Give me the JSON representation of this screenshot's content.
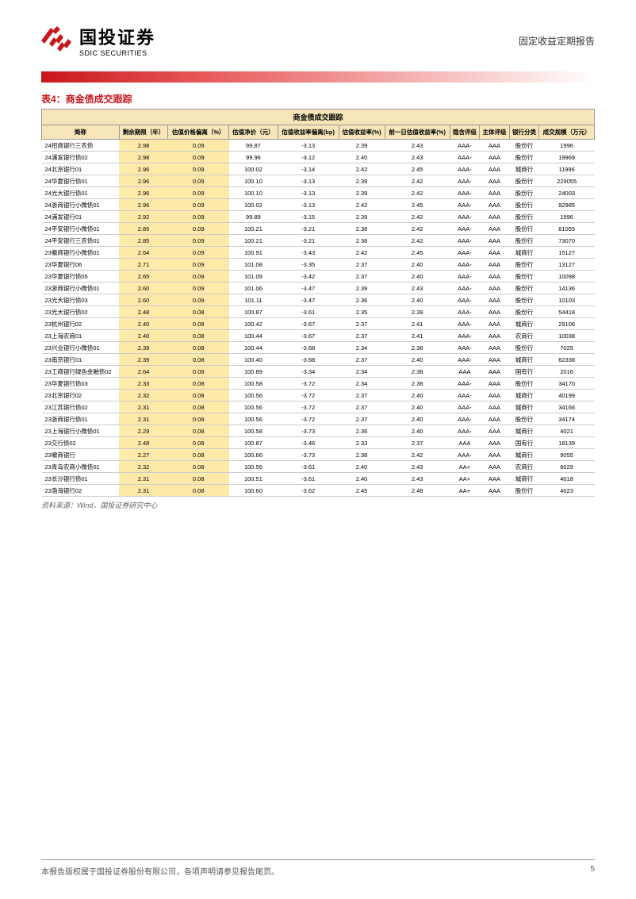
{
  "header": {
    "logo_cn": "国投证券",
    "logo_en": "SDIC SECURITIES",
    "report_type": "固定收益定期报告"
  },
  "table": {
    "caption": "表4：商金债成交跟踪",
    "banner": "商金债成交跟踪",
    "columns": [
      "简称",
      "剩余期限（年）",
      "估值价格偏离（%）",
      "估值净价（元）",
      "估值收益率偏离(bp)",
      "估值收益率(%)",
      "前一日估值收益率(%)",
      "隐含评级",
      "主体评级",
      "银行分类",
      "成交规模（万元）"
    ],
    "highlight_cols": [
      1,
      2
    ],
    "rows": [
      [
        "24招商银行三农债",
        "2.98",
        "0.09",
        "99.87",
        "-3.13",
        "2.39",
        "2.43",
        "AAA-",
        "AAA",
        "股份行",
        "1996"
      ],
      [
        "24浦发银行债02",
        "2.98",
        "0.09",
        "99.96",
        "-3.12",
        "2.40",
        "2.43",
        "AAA-",
        "AAA",
        "股份行",
        "19969"
      ],
      [
        "24北京银行01",
        "2.96",
        "0.09",
        "100.02",
        "-3.14",
        "2.42",
        "2.45",
        "AAA-",
        "AAA",
        "城商行",
        "11996"
      ],
      [
        "24华夏银行债01",
        "2.96",
        "0.09",
        "100.10",
        "-3.13",
        "2.39",
        "2.42",
        "AAA-",
        "AAA",
        "股份行",
        "229055"
      ],
      [
        "24光大银行债01",
        "2.96",
        "0.09",
        "100.10",
        "-3.13",
        "2.39",
        "2.42",
        "AAA-",
        "AAA",
        "股份行",
        "24003"
      ],
      [
        "24浙商银行小微债01",
        "2.96",
        "0.09",
        "100.02",
        "-3.13",
        "2.42",
        "2.45",
        "AAA-",
        "AAA",
        "股份行",
        "92985"
      ],
      [
        "24浦发银行01",
        "2.92",
        "0.09",
        "99.89",
        "-3.15",
        "2.39",
        "2.42",
        "AAA-",
        "AAA",
        "股份行",
        "1996"
      ],
      [
        "24平安银行小微债01",
        "2.85",
        "0.09",
        "100.21",
        "-3.21",
        "2.38",
        "2.42",
        "AAA-",
        "AAA",
        "股份行",
        "81055"
      ],
      [
        "24平安银行三农债01",
        "2.85",
        "0.09",
        "100.21",
        "-3.21",
        "2.38",
        "2.42",
        "AAA-",
        "AAA",
        "股份行",
        "73070"
      ],
      [
        "23徽商银行小微债01",
        "2.64",
        "0.09",
        "100.91",
        "-3.43",
        "2.42",
        "2.45",
        "AAA-",
        "AAA",
        "城商行",
        "15127"
      ],
      [
        "23华夏银行06",
        "2.71",
        "0.09",
        "101.08",
        "-3.35",
        "2.37",
        "2.40",
        "AAA-",
        "AAA",
        "股份行",
        "13127"
      ],
      [
        "23华夏银行债05",
        "2.65",
        "0.09",
        "101.09",
        "-3.42",
        "2.37",
        "2.40",
        "AAA-",
        "AAA",
        "股份行",
        "10098"
      ],
      [
        "23浙商银行小微债01",
        "2.60",
        "0.09",
        "101.06",
        "-3.47",
        "2.39",
        "2.43",
        "AAA-",
        "AAA",
        "股份行",
        "14136"
      ],
      [
        "23光大银行债03",
        "2.60",
        "0.09",
        "101.11",
        "-3.47",
        "2.36",
        "2.40",
        "AAA-",
        "AAA",
        "股份行",
        "10103"
      ],
      [
        "23光大银行债02",
        "2.48",
        "0.08",
        "100.87",
        "-3.61",
        "2.35",
        "2.39",
        "AAA-",
        "AAA",
        "股份行",
        "54418"
      ],
      [
        "23杭州银行02",
        "2.40",
        "0.08",
        "100.42",
        "-3.67",
        "2.37",
        "2.41",
        "AAA-",
        "AAA",
        "城商行",
        "29106"
      ],
      [
        "23上海农商01",
        "2.40",
        "0.08",
        "100.44",
        "-3.67",
        "2.37",
        "2.41",
        "AAA-",
        "AAA",
        "农商行",
        "10038"
      ],
      [
        "23兴业银行小微债01",
        "2.39",
        "0.08",
        "100.44",
        "-3.68",
        "2.34",
        "2.38",
        "AAA-",
        "AAA",
        "股份行",
        "7025"
      ],
      [
        "23南京银行01",
        "2.39",
        "0.08",
        "100.40",
        "-3.68",
        "2.37",
        "2.40",
        "AAA-",
        "AAA",
        "城商行",
        "82338"
      ],
      [
        "23工商银行绿色金融债02",
        "2.64",
        "0.08",
        "100.89",
        "-3.34",
        "2.34",
        "2.38",
        "AAA",
        "AAA",
        "国有行",
        "2016"
      ],
      [
        "23华夏银行债03",
        "2.33",
        "0.08",
        "100.58",
        "-3.72",
        "2.34",
        "2.38",
        "AAA-",
        "AAA",
        "股份行",
        "34170"
      ],
      [
        "23北京银行02",
        "2.32",
        "0.08",
        "100.56",
        "-3.72",
        "2.37",
        "2.40",
        "AAA-",
        "AAA",
        "城商行",
        "40199"
      ],
      [
        "23江苏银行债02",
        "2.31",
        "0.08",
        "100.56",
        "-3.72",
        "2.37",
        "2.40",
        "AAA-",
        "AAA",
        "城商行",
        "34166"
      ],
      [
        "23浙商银行债01",
        "2.31",
        "0.08",
        "100.56",
        "-3.72",
        "2.37",
        "2.40",
        "AAA-",
        "AAA",
        "股份行",
        "34174"
      ],
      [
        "23上海银行小微债01",
        "2.29",
        "0.08",
        "100.58",
        "-3.73",
        "2.36",
        "2.40",
        "AAA-",
        "AAA",
        "城商行",
        "4021"
      ],
      [
        "23交行债02",
        "2.48",
        "0.08",
        "100.87",
        "-3.46",
        "2.33",
        "2.37",
        "AAA",
        "AAA",
        "国有行",
        "18139"
      ],
      [
        "23徽商银行",
        "2.27",
        "0.08",
        "100.66",
        "-3.73",
        "2.38",
        "2.42",
        "AAA-",
        "AAA",
        "城商行",
        "9055"
      ],
      [
        "23青岛农商小微债01",
        "2.32",
        "0.08",
        "100.56",
        "-3.61",
        "2.40",
        "2.43",
        "AA+",
        "AAA",
        "农商行",
        "6029"
      ],
      [
        "23长沙银行债01",
        "2.31",
        "0.08",
        "100.51",
        "-3.61",
        "2.40",
        "2.43",
        "AA+",
        "AAA",
        "城商行",
        "4018"
      ],
      [
        "23渤海银行02",
        "2.31",
        "0.08",
        "100.60",
        "-3.62",
        "2.45",
        "2.48",
        "AA+",
        "AAA",
        "股份行",
        "4023"
      ]
    ],
    "source": "资料来源：Wind，国投证券研究中心"
  },
  "footer": {
    "copyright": "本报告版权属于国投证券股份有限公司，各项声明请参见报告尾页。",
    "page": "5"
  }
}
